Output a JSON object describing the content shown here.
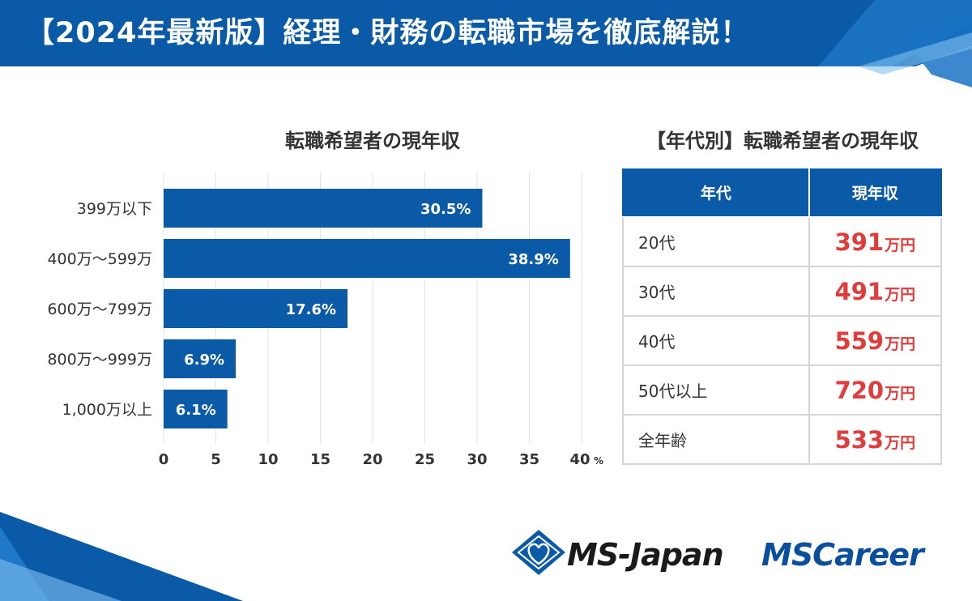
{
  "header": {
    "title": "【2024年最新版】経理・財務の転職市場を徹底解説！"
  },
  "colors": {
    "brand_blue": "#0a5aa8",
    "accent_red": "#e33a3a",
    "grid": "#e3e3e3"
  },
  "chart_data": {
    "type": "bar",
    "orientation": "horizontal",
    "title": "転職希望者の現年収",
    "categories": [
      "399万以下",
      "400万～599万",
      "600万～799万",
      "800万～999万",
      "1,000万以上"
    ],
    "values": [
      30.5,
      38.9,
      17.6,
      6.9,
      6.1
    ],
    "value_labels": [
      "30.5%",
      "38.9%",
      "17.6%",
      "6.9%",
      "6.1%"
    ],
    "xlim": [
      0,
      40
    ],
    "x_ticks": [
      "0",
      "5",
      "10",
      "15",
      "20",
      "25",
      "30",
      "35",
      "40"
    ],
    "x_unit": "%",
    "xlabel": "",
    "ylabel": "",
    "grid": true
  },
  "table": {
    "title": "【年代別】転職希望者の現年収",
    "headers": [
      "年代",
      "現年収"
    ],
    "unit": "万円",
    "rows": [
      {
        "age": "20代",
        "value": "391"
      },
      {
        "age": "30代",
        "value": "491"
      },
      {
        "age": "40代",
        "value": "559"
      },
      {
        "age": "50代以上",
        "value": "720"
      },
      {
        "age": "全年齢",
        "value": "533"
      }
    ]
  },
  "logos": {
    "msjapan": "MS-Japan",
    "mscareer": "MSCareer"
  }
}
